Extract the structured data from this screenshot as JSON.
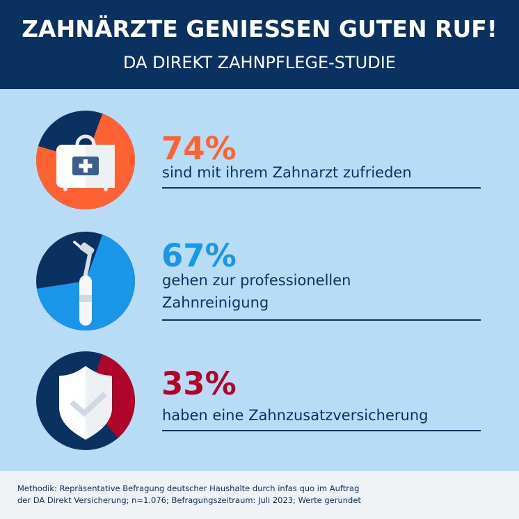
{
  "header": {
    "title": "ZAHNÄRZTE GENIESSEN GUTEN RUF!",
    "subtitle": "DA DIREKT ZAHNPFLEGE-STUDIE"
  },
  "stats": [
    {
      "value": "74%",
      "percent": 74,
      "lines": [
        "sind mit ihrem Zahnarzt zufrieden"
      ],
      "color": "#fe6233",
      "icon": "first-aid-kit-icon"
    },
    {
      "value": "67%",
      "percent": 67,
      "lines": [
        "gehen zur professionellen",
        "Zahnreinigung"
      ],
      "color": "#1a96e8",
      "icon": "dental-drill-icon"
    },
    {
      "value": "33%",
      "percent": 33,
      "lines": [
        "haben eine Zahnzusatzversicherung"
      ],
      "color": "#b0042a",
      "icon": "shield-check-icon"
    }
  ],
  "colors": {
    "navy": "#0b3160",
    "background": "#b8dcf5"
  },
  "footer": {
    "lines": [
      "Methodik: Repräsentative Befragung deutscher Haushalte durch infas quo im Auftrag",
      "der DA Direkt Versicherung; n=1.076; Befragungszeitraum: Juli 2023; Werte gerundet"
    ]
  }
}
